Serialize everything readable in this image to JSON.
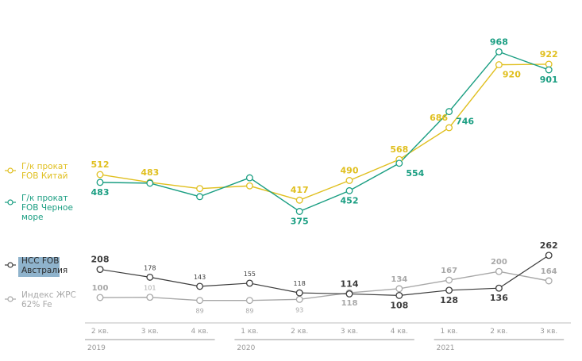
{
  "chart_data": {
    "type": "line",
    "categories": [
      "2 кв.",
      "3 кв.",
      "4 кв.",
      "1 кв.",
      "2 кв.",
      "3 кв.",
      "4 кв.",
      "1 кв.",
      "2 кв.",
      "3 кв."
    ],
    "years": [
      {
        "label": "2019",
        "from": 0,
        "to": 2
      },
      {
        "label": "2020",
        "from": 3,
        "to": 6
      },
      {
        "label": "2021",
        "from": 7,
        "to": 9
      }
    ],
    "series": [
      {
        "name": "Г/к прокат FOB Китай",
        "color": "#e0bf1e",
        "values": [
          512,
          483,
          460,
          470,
          417,
          490,
          568,
          686,
          920,
          922
        ],
        "labels": [
          "512",
          "483",
          "",
          "",
          "417",
          "490",
          "568",
          "686",
          "920",
          "922"
        ]
      },
      {
        "name": "Г/к прокат FOB Черное море",
        "color": "#1a9e82",
        "values": [
          483,
          480,
          430,
          500,
          375,
          452,
          554,
          746,
          968,
          901
        ],
        "labels": [
          "483",
          "",
          "",
          "",
          "375",
          "452",
          "554",
          "746",
          "968",
          "901"
        ]
      },
      {
        "name": "HCC FOB Австралия",
        "color": "#3c3c3c",
        "values": [
          208,
          178,
          143,
          155,
          118,
          114,
          108,
          128,
          136,
          262
        ],
        "labels": [
          "208",
          "178",
          "143",
          "155",
          "118",
          "114",
          "108",
          "128",
          "136",
          "262"
        ]
      },
      {
        "name": "Индекс ЖРС 62% Fe",
        "color": "#a8a8a8",
        "values": [
          100,
          101,
          89,
          89,
          93,
          118,
          134,
          167,
          200,
          164
        ],
        "labels": [
          "100",
          "101",
          "89",
          "89",
          "93",
          "118",
          "134",
          "167",
          "200",
          "164"
        ]
      }
    ],
    "grid": false,
    "legend_position": "left"
  }
}
